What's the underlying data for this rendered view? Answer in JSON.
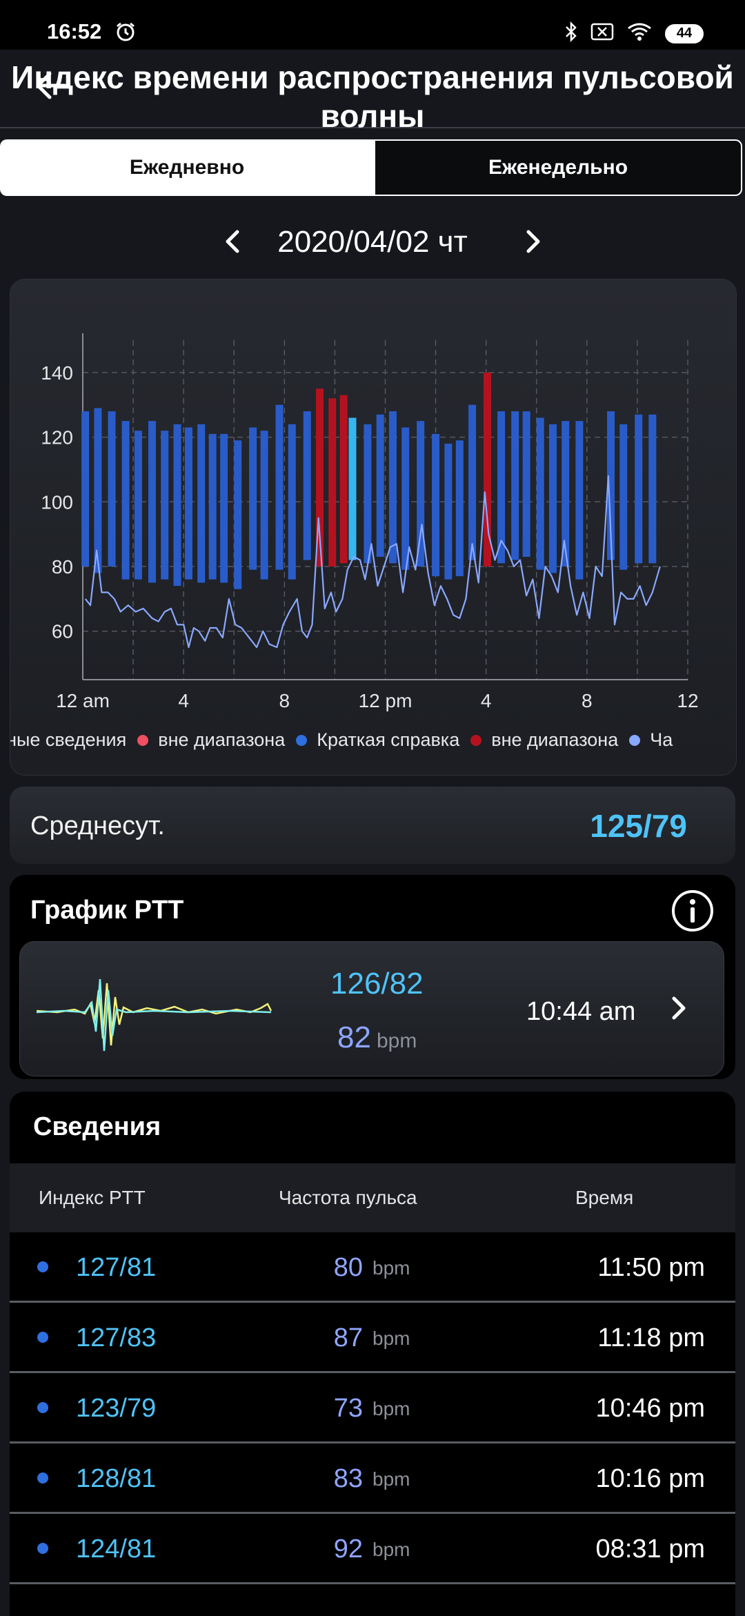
{
  "status_bar": {
    "time": "16:52",
    "battery": "44"
  },
  "header": {
    "title": "Индекс времени распространения пульсовой волны"
  },
  "tabs": [
    {
      "label": "Ежедневно",
      "active": true
    },
    {
      "label": "Еженедельно",
      "active": false
    }
  ],
  "date": {
    "label": "2020/04/02 чт"
  },
  "colors": {
    "bar": "#2a5cc9",
    "out_of_range": "#b5121f",
    "out_of_range_light": "#f04e62",
    "selected": "#36b5f0",
    "pulse_line": "#8aa8ff",
    "accent": "#4fc3f7"
  },
  "chart_data": {
    "type": "bar",
    "ylim": [
      45,
      150
    ],
    "xlim": [
      0,
      24
    ],
    "y_ticks": [
      60,
      80,
      100,
      120,
      140
    ],
    "x_ticks": [
      0,
      4,
      8,
      12,
      16,
      20,
      24
    ],
    "x_tick_labels": [
      "12 am",
      "4",
      "8",
      "12 pm",
      "4",
      "8",
      "12"
    ],
    "grid": true,
    "legend_position": "bottom",
    "legend": [
      {
        "label": "ьные сведения",
        "color": ""
      },
      {
        "label": "вне диапазона",
        "color": "#f04e62"
      },
      {
        "label": "Краткая справка",
        "color": "#2f6fe0"
      },
      {
        "label": "вне диапазона",
        "color": "#b5121f"
      },
      {
        "label": "Ча",
        "color": "#8aa8ff"
      }
    ],
    "bars": [
      {
        "x": 0.1,
        "high": 128,
        "low": 80,
        "flag": "normal"
      },
      {
        "x": 0.6,
        "high": 129,
        "low": 78,
        "flag": "normal"
      },
      {
        "x": 1.15,
        "high": 128,
        "low": 80,
        "flag": "normal"
      },
      {
        "x": 1.7,
        "high": 125,
        "low": 76,
        "flag": "normal"
      },
      {
        "x": 2.2,
        "high": 122,
        "low": 76,
        "flag": "normal"
      },
      {
        "x": 2.75,
        "high": 125,
        "low": 75,
        "flag": "normal"
      },
      {
        "x": 3.25,
        "high": 122,
        "low": 76,
        "flag": "normal"
      },
      {
        "x": 3.75,
        "high": 124,
        "low": 74,
        "flag": "normal"
      },
      {
        "x": 4.2,
        "high": 123,
        "low": 76,
        "flag": "normal"
      },
      {
        "x": 4.7,
        "high": 124,
        "low": 75,
        "flag": "normal"
      },
      {
        "x": 5.15,
        "high": 121,
        "low": 76,
        "flag": "normal"
      },
      {
        "x": 5.6,
        "high": 121,
        "low": 75,
        "flag": "normal"
      },
      {
        "x": 6.15,
        "high": 119,
        "low": 73,
        "flag": "normal"
      },
      {
        "x": 6.75,
        "high": 123,
        "low": 79,
        "flag": "normal"
      },
      {
        "x": 7.2,
        "high": 122,
        "low": 76,
        "flag": "normal"
      },
      {
        "x": 7.8,
        "high": 130,
        "low": 79,
        "flag": "normal"
      },
      {
        "x": 8.3,
        "high": 124,
        "low": 76,
        "flag": "normal"
      },
      {
        "x": 8.9,
        "high": 128,
        "low": 82,
        "flag": "normal"
      },
      {
        "x": 9.4,
        "high": 135,
        "low": 80,
        "flag": "out_of_range"
      },
      {
        "x": 9.9,
        "high": 132,
        "low": 80,
        "flag": "out_of_range"
      },
      {
        "x": 10.35,
        "high": 133,
        "low": 81,
        "flag": "out_of_range"
      },
      {
        "x": 10.7,
        "high": 126,
        "low": 82,
        "flag": "selected"
      },
      {
        "x": 11.3,
        "high": 124,
        "low": 81,
        "flag": "normal"
      },
      {
        "x": 11.8,
        "high": 127,
        "low": 83,
        "flag": "normal"
      },
      {
        "x": 12.3,
        "high": 128,
        "low": 81,
        "flag": "normal"
      },
      {
        "x": 12.8,
        "high": 123,
        "low": 79,
        "flag": "normal"
      },
      {
        "x": 13.4,
        "high": 125,
        "low": 80,
        "flag": "normal"
      },
      {
        "x": 14.0,
        "high": 121,
        "low": 77,
        "flag": "normal"
      },
      {
        "x": 14.5,
        "high": 118,
        "low": 76,
        "flag": "normal"
      },
      {
        "x": 14.95,
        "high": 119,
        "low": 77,
        "flag": "normal"
      },
      {
        "x": 15.45,
        "high": 130,
        "low": 82,
        "flag": "normal"
      },
      {
        "x": 16.05,
        "high": 140,
        "low": 80,
        "flag": "out_of_range"
      },
      {
        "x": 16.6,
        "high": 128,
        "low": 81,
        "flag": "normal"
      },
      {
        "x": 17.15,
        "high": 128,
        "low": 82,
        "flag": "normal"
      },
      {
        "x": 17.6,
        "high": 128,
        "low": 83,
        "flag": "normal"
      },
      {
        "x": 18.15,
        "high": 126,
        "low": 79,
        "flag": "normal"
      },
      {
        "x": 18.65,
        "high": 124,
        "low": 78,
        "flag": "normal"
      },
      {
        "x": 19.15,
        "high": 125,
        "low": 80,
        "flag": "normal"
      },
      {
        "x": 19.7,
        "high": 125,
        "low": 76,
        "flag": "normal"
      },
      {
        "x": 20.95,
        "high": 128,
        "low": 82,
        "flag": "normal"
      },
      {
        "x": 21.45,
        "high": 124,
        "low": 79,
        "flag": "normal"
      },
      {
        "x": 22.05,
        "high": 127,
        "low": 81,
        "flag": "normal"
      },
      {
        "x": 22.6,
        "high": 127,
        "low": 81,
        "flag": "normal"
      }
    ],
    "pulse": {
      "x": [
        0.1,
        0.3,
        0.55,
        0.75,
        1.0,
        1.25,
        1.5,
        1.8,
        2.1,
        2.4,
        2.75,
        3.0,
        3.25,
        3.5,
        3.75,
        4.0,
        4.2,
        4.4,
        4.6,
        4.85,
        5.05,
        5.3,
        5.55,
        5.8,
        6.05,
        6.3,
        6.6,
        6.9,
        7.15,
        7.4,
        7.7,
        7.95,
        8.2,
        8.5,
        8.7,
        8.9,
        9.1,
        9.35,
        9.6,
        9.85,
        10.05,
        10.3,
        10.5,
        10.75,
        11.0,
        11.2,
        11.45,
        11.7,
        11.95,
        12.2,
        12.45,
        12.7,
        12.95,
        13.2,
        13.45,
        13.7,
        13.95,
        14.2,
        14.45,
        14.7,
        14.95,
        15.2,
        15.45,
        15.7,
        15.95,
        16.1,
        16.35,
        16.6,
        16.85,
        17.1,
        17.35,
        17.6,
        17.85,
        18.1,
        18.35,
        18.6,
        18.85,
        19.1,
        19.35,
        19.6,
        19.85,
        20.1,
        20.35,
        20.6,
        20.85,
        21.1,
        21.35,
        21.6,
        21.85,
        22.1,
        22.35,
        22.6,
        22.9
      ],
      "y": [
        70,
        68,
        85,
        72,
        72,
        70,
        66,
        68,
        66,
        67,
        64,
        63,
        66,
        67,
        62,
        62,
        55,
        61,
        60,
        57,
        61,
        61,
        58,
        70,
        62,
        61,
        58,
        55,
        60,
        56,
        55,
        62,
        66,
        70,
        60,
        58,
        62,
        95,
        67,
        72,
        66,
        70,
        79,
        83,
        82,
        76,
        87,
        74,
        80,
        86,
        87,
        72,
        86,
        79,
        93,
        78,
        68,
        74,
        70,
        65,
        64,
        70,
        87,
        75,
        103,
        90,
        82,
        88,
        85,
        80,
        82,
        71,
        76,
        64,
        80,
        77,
        72,
        88,
        74,
        65,
        72,
        64,
        80,
        77,
        108,
        62,
        72,
        70,
        70,
        74,
        68,
        72,
        80
      ]
    }
  },
  "average": {
    "label": "Среднесут.",
    "value": "125/79"
  },
  "ptt_graph": {
    "title": "График PTT",
    "bp": "126/82",
    "pulse": "82",
    "pulse_unit": "bpm",
    "time": "10:44 am"
  },
  "details": {
    "title": "Сведения",
    "headers": {
      "index": "Индекс PTT",
      "pulse": "Частота пульса",
      "time": "Время"
    },
    "rows": [
      {
        "bp": "127/81",
        "pulse": "80",
        "unit": "bpm",
        "time": "11:50 pm"
      },
      {
        "bp": "127/83",
        "pulse": "87",
        "unit": "bpm",
        "time": "11:18 pm"
      },
      {
        "bp": "123/79",
        "pulse": "73",
        "unit": "bpm",
        "time": "10:46 pm"
      },
      {
        "bp": "128/81",
        "pulse": "83",
        "unit": "bpm",
        "time": "10:16 pm"
      },
      {
        "bp": "124/81",
        "pulse": "92",
        "unit": "bpm",
        "time": "08:31 pm"
      }
    ]
  }
}
